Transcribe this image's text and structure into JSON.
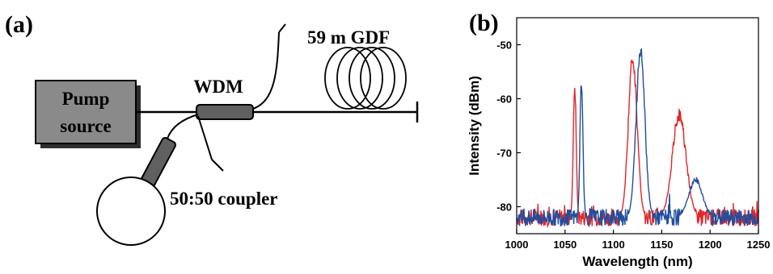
{
  "figure": {
    "panel_a_label": "(a)",
    "panel_b_label": "(b)"
  },
  "schematic": {
    "pump_label_line1": "Pump",
    "pump_label_line2": "source",
    "wdm_label": "WDM",
    "fiber_label": "59 m  GDF",
    "coupler_label": "50:50 coupler",
    "colors": {
      "pump_box": "#8a8a8a",
      "component": "#606060",
      "line": "#000000"
    }
  },
  "chart_data": {
    "type": "line",
    "xlabel": "Wavelength (nm)",
    "ylabel": "Intensity (dBm)",
    "xlim": [
      1000,
      1250
    ],
    "ylim": [
      -85,
      -45
    ],
    "xticks": [
      1000,
      1050,
      1100,
      1150,
      1200,
      1250
    ],
    "yticks": [
      -80,
      -70,
      -60,
      -50
    ],
    "grid": false,
    "series": [
      {
        "color": "#e0262b",
        "noise_floor": -82,
        "peaks": [
          {
            "center": 1060,
            "height": -57.8,
            "width": 1.5
          },
          {
            "center": 1120,
            "height": -52.5,
            "width": 4.5
          },
          {
            "center": 1168,
            "height": -63,
            "width": 7
          }
        ]
      },
      {
        "color": "#1f4e9e",
        "noise_floor": -82,
        "peaks": [
          {
            "center": 1067,
            "height": -56.8,
            "width": 1.5
          },
          {
            "center": 1128,
            "height": -51.2,
            "width": 4.5
          },
          {
            "center": 1185,
            "height": -75,
            "width": 7
          }
        ]
      }
    ]
  }
}
